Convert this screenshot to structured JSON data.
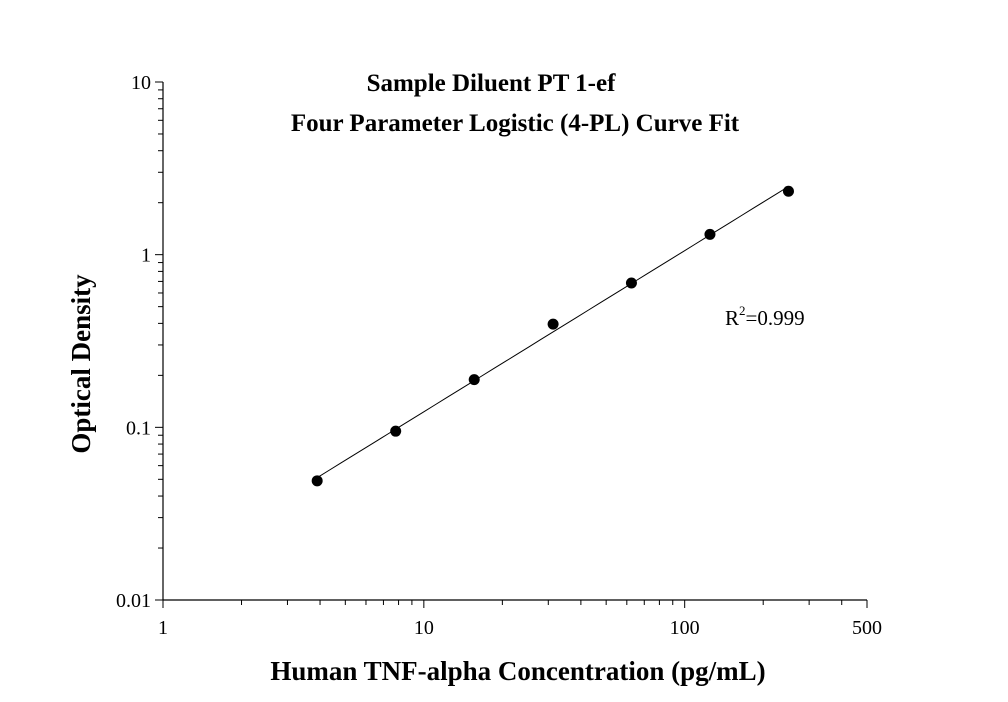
{
  "chart_data": {
    "type": "scatter",
    "title_line1": "Sample Diluent PT 1-ef",
    "title_line2": "Four Parameter Logistic (4-PL) Curve Fit",
    "xlabel": "Human TNF-alpha Concentration (pg/mL)",
    "ylabel": "Optical Density",
    "x_scale": "log",
    "y_scale": "log",
    "xlim": [
      1,
      500
    ],
    "ylim": [
      0.01,
      10
    ],
    "x_tick_labels": [
      "1",
      "10",
      "100",
      "500"
    ],
    "y_tick_labels": [
      "0.01",
      "0.1",
      "1",
      "10"
    ],
    "grid": false,
    "legend": false,
    "series": [
      {
        "x": [
          3.9,
          7.8,
          15.6,
          31.3,
          62.5,
          125,
          250
        ],
        "y": [
          0.049,
          0.095,
          0.189,
          0.396,
          0.685,
          1.31,
          2.33
        ]
      }
    ],
    "fit_line": true,
    "annotation": {
      "r_base": "R",
      "r_sup": "2",
      "r_value": "=0.999"
    },
    "colors": {
      "points": "#000000",
      "line": "#000000",
      "axes": "#000000"
    }
  }
}
